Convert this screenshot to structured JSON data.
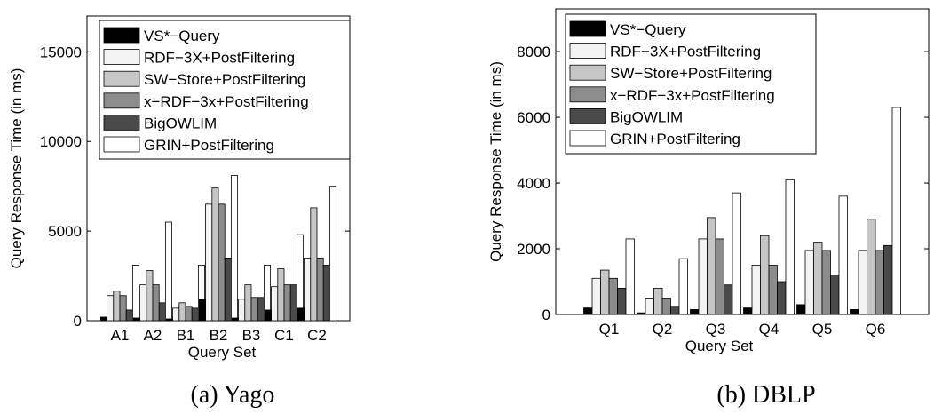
{
  "series_colors": [
    "#000000",
    "#f3f3f3",
    "#c6c6c6",
    "#8c8c8c",
    "#4a4a4a",
    "#ffffff"
  ],
  "chart_data": [
    {
      "type": "bar",
      "caption": "(a) Yago",
      "xlabel": "Query Set",
      "ylabel": "Query Response Time (in ms)",
      "ylim": [
        0,
        17000
      ],
      "yticks": [
        0,
        5000,
        10000,
        15000
      ],
      "legend_position": "top-left",
      "categories": [
        "A1",
        "A2",
        "B1",
        "B2",
        "B3",
        "C1",
        "C2"
      ],
      "series": [
        {
          "name": "VS*−Query",
          "values": [
            200,
            150,
            100,
            1200,
            150,
            600,
            700
          ]
        },
        {
          "name": "RDF−3X+PostFiltering",
          "values": [
            1400,
            2000,
            700,
            6500,
            1200,
            1900,
            3500
          ]
        },
        {
          "name": "SW−Store+PostFiltering",
          "values": [
            1650,
            2800,
            1000,
            7400,
            2000,
            2900,
            6300
          ]
        },
        {
          "name": "x−RDF−3x+PostFiltering",
          "values": [
            1400,
            2000,
            800,
            6500,
            1300,
            2000,
            3500
          ]
        },
        {
          "name": "BigOWLIM",
          "values": [
            600,
            1000,
            700,
            3500,
            1300,
            2000,
            3100
          ]
        },
        {
          "name": "GRIN+PostFiltering",
          "values": [
            3100,
            5500,
            3100,
            8100,
            3100,
            4800,
            7500
          ]
        }
      ]
    },
    {
      "type": "bar",
      "caption": "(b) DBLP",
      "xlabel": "Query Set",
      "ylabel": "Query Response Time (in ms)",
      "ylim": [
        0,
        9300
      ],
      "yticks": [
        0,
        2000,
        4000,
        6000,
        8000
      ],
      "legend_position": "top-left",
      "categories": [
        "Q1",
        "Q2",
        "Q3",
        "Q4",
        "Q5",
        "Q6"
      ],
      "series": [
        {
          "name": "VS*−Query",
          "values": [
            200,
            50,
            150,
            200,
            300,
            150
          ]
        },
        {
          "name": "RDF−3X+PostFiltering",
          "values": [
            1100,
            500,
            2300,
            1500,
            1950,
            1950
          ]
        },
        {
          "name": "SW−Store+PostFiltering",
          "values": [
            1350,
            800,
            2950,
            2400,
            2200,
            2900
          ]
        },
        {
          "name": "x−RDF−3x+PostFiltering",
          "values": [
            1100,
            500,
            2300,
            1500,
            1950,
            1950
          ]
        },
        {
          "name": "BigOWLIM",
          "values": [
            800,
            250,
            900,
            1000,
            1200,
            2100
          ]
        },
        {
          "name": "GRIN+PostFiltering",
          "values": [
            2300,
            1700,
            3700,
            4100,
            3600,
            6300
          ]
        }
      ]
    }
  ]
}
